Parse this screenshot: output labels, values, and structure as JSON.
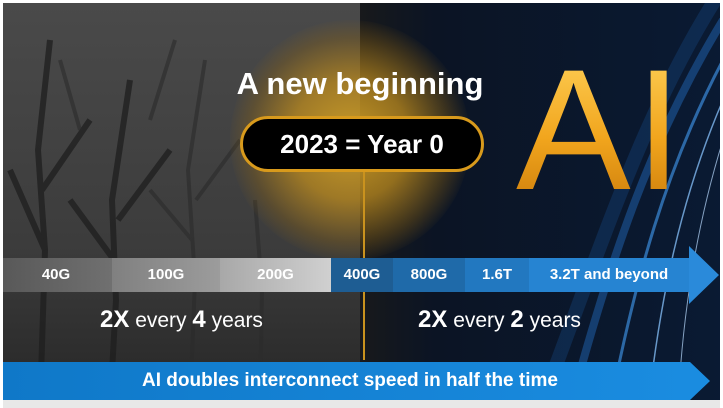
{
  "title": "A new beginning",
  "year_label": "2023 = Year 0",
  "brand_letters": "AI",
  "speed_segments": [
    "40G",
    "100G",
    "200G",
    "400G",
    "800G",
    "1.6T",
    "3.2T and beyond"
  ],
  "rate_left": {
    "prefix": "2X",
    "mid": " every ",
    "num": "4",
    "suffix": " years"
  },
  "rate_right": {
    "prefix": "2X",
    "mid": " every ",
    "num": "2",
    "suffix": " years"
  },
  "banner": "AI doubles interconnect speed in half the time",
  "colors": {
    "accent_gold": "#d89a1c",
    "blue": "#1f7fd0",
    "gray": "#8a8a8a"
  }
}
